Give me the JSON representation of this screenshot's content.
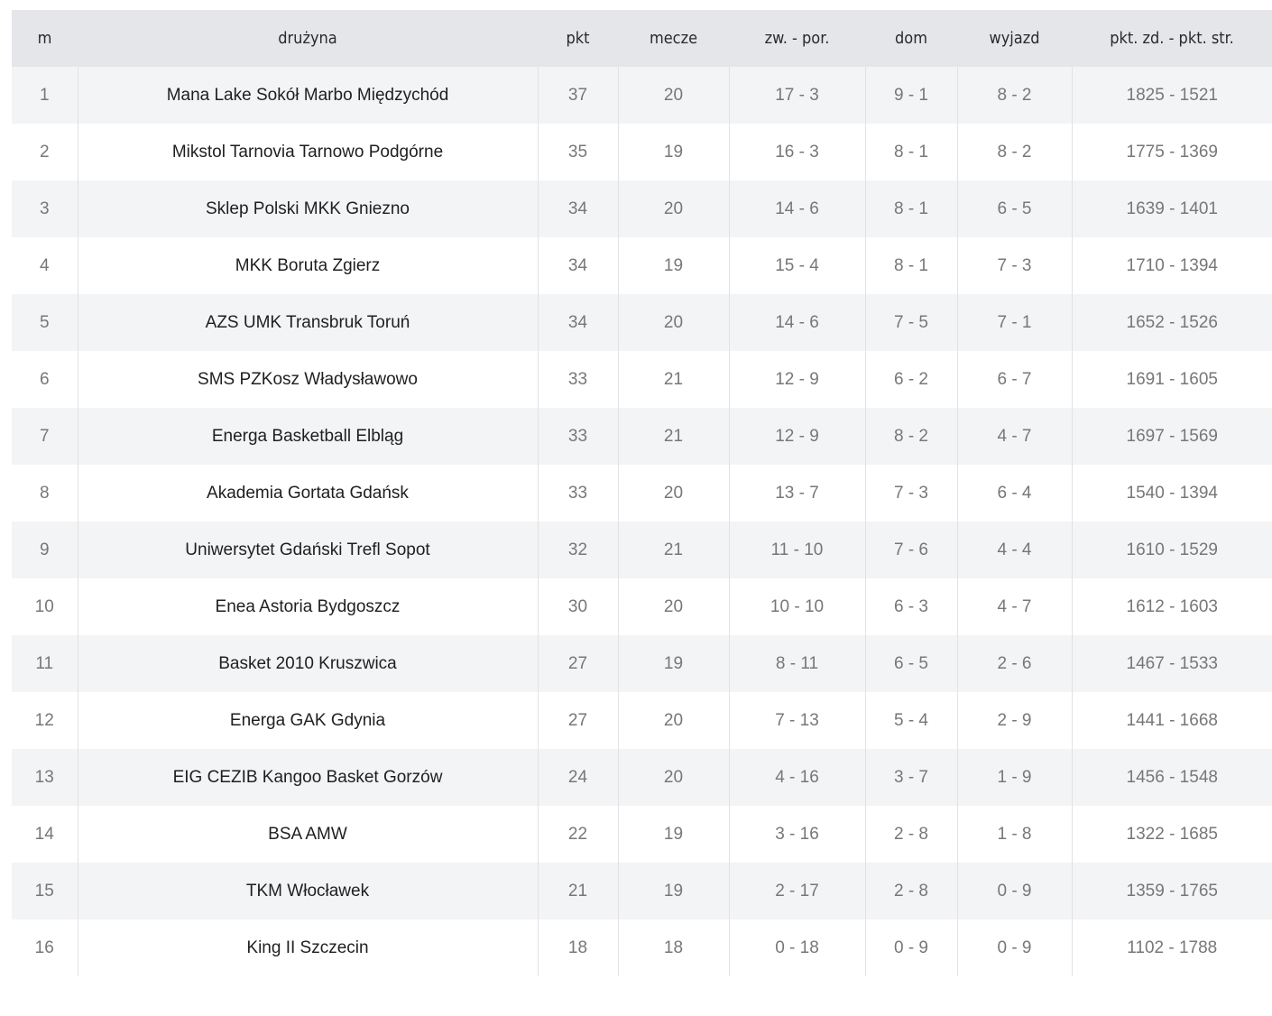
{
  "table": {
    "headers": [
      "m",
      "drużyna",
      "pkt",
      "mecze",
      "zw. - por.",
      "dom",
      "wyjazd",
      "pkt. zd. - pkt. str."
    ],
    "rows": [
      {
        "pos": "1",
        "team": "Mana Lake Sokół Marbo Międzychód",
        "pts": "37",
        "games": "20",
        "wl": "17 - 3",
        "home": "9 - 1",
        "away": "8 - 2",
        "points": "1825 - 1521"
      },
      {
        "pos": "2",
        "team": "Mikstol Tarnovia Tarnowo Podgórne",
        "pts": "35",
        "games": "19",
        "wl": "16 - 3",
        "home": "8 - 1",
        "away": "8 - 2",
        "points": "1775 - 1369"
      },
      {
        "pos": "3",
        "team": "Sklep Polski MKK Gniezno",
        "pts": "34",
        "games": "20",
        "wl": "14 - 6",
        "home": "8 - 1",
        "away": "6 - 5",
        "points": "1639 - 1401"
      },
      {
        "pos": "4",
        "team": "MKK Boruta Zgierz",
        "pts": "34",
        "games": "19",
        "wl": "15 - 4",
        "home": "8 - 1",
        "away": "7 - 3",
        "points": "1710 - 1394"
      },
      {
        "pos": "5",
        "team": "AZS UMK Transbruk Toruń",
        "pts": "34",
        "games": "20",
        "wl": "14 - 6",
        "home": "7 - 5",
        "away": "7 - 1",
        "points": "1652 - 1526"
      },
      {
        "pos": "6",
        "team": "SMS PZKosz Władysławowo",
        "pts": "33",
        "games": "21",
        "wl": "12 - 9",
        "home": "6 - 2",
        "away": "6 - 7",
        "points": "1691 - 1605"
      },
      {
        "pos": "7",
        "team": "Energa Basketball Elbląg",
        "pts": "33",
        "games": "21",
        "wl": "12 - 9",
        "home": "8 - 2",
        "away": "4 - 7",
        "points": "1697 - 1569"
      },
      {
        "pos": "8",
        "team": "Akademia Gortata Gdańsk",
        "pts": "33",
        "games": "20",
        "wl": "13 - 7",
        "home": "7 - 3",
        "away": "6 - 4",
        "points": "1540 - 1394"
      },
      {
        "pos": "9",
        "team": "Uniwersytet Gdański Trefl Sopot",
        "pts": "32",
        "games": "21",
        "wl": "11 - 10",
        "home": "7 - 6",
        "away": "4 - 4",
        "points": "1610 - 1529"
      },
      {
        "pos": "10",
        "team": "Enea Astoria Bydgoszcz",
        "pts": "30",
        "games": "20",
        "wl": "10 - 10",
        "home": "6 - 3",
        "away": "4 - 7",
        "points": "1612 - 1603"
      },
      {
        "pos": "11",
        "team": "Basket 2010 Kruszwica",
        "pts": "27",
        "games": "19",
        "wl": "8 - 11",
        "home": "6 - 5",
        "away": "2 - 6",
        "points": "1467 - 1533"
      },
      {
        "pos": "12",
        "team": "Energa GAK Gdynia",
        "pts": "27",
        "games": "20",
        "wl": "7 - 13",
        "home": "5 - 4",
        "away": "2 - 9",
        "points": "1441 - 1668"
      },
      {
        "pos": "13",
        "team": "EIG CEZIB Kangoo Basket Gorzów",
        "pts": "24",
        "games": "20",
        "wl": "4 - 16",
        "home": "3 - 7",
        "away": "1 - 9",
        "points": "1456 - 1548"
      },
      {
        "pos": "14",
        "team": "BSA AMW",
        "pts": "22",
        "games": "19",
        "wl": "3 - 16",
        "home": "2 - 8",
        "away": "1 - 8",
        "points": "1322 - 1685"
      },
      {
        "pos": "15",
        "team": "TKM Włocławek",
        "pts": "21",
        "games": "19",
        "wl": "2 - 17",
        "home": "2 - 8",
        "away": "0 - 9",
        "points": "1359 - 1765"
      },
      {
        "pos": "16",
        "team": "King II Szczecin",
        "pts": "18",
        "games": "18",
        "wl": "0 - 18",
        "home": "0 - 9",
        "away": "0 - 9",
        "points": "1102 - 1788"
      }
    ]
  }
}
